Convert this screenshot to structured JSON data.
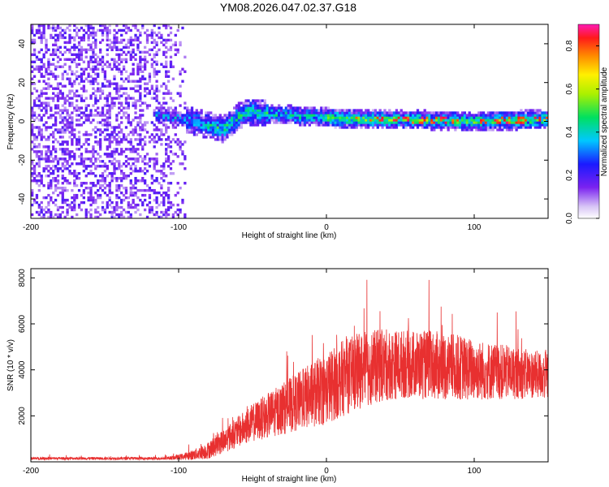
{
  "title": "YM08.2026.047.02.37.G18",
  "chart_data": [
    {
      "type": "heatmap",
      "name": "spectrogram",
      "xlabel": "Height of straight line (km)",
      "ylabel": "Frequency (Hz)",
      "xlim": [
        -200,
        150
      ],
      "ylim": [
        -50,
        50
      ],
      "xticks": [
        -200,
        -100,
        0,
        100
      ],
      "yticks": [
        -40,
        -20,
        0,
        20,
        40
      ],
      "description_of_data": "Normalized spectral amplitude; broad noise below about -95 km, narrow band near 0 Hz above",
      "noise_region_x": [
        -200,
        -95
      ],
      "signal_band_center_hz": [
        {
          "x": -110,
          "f": 3
        },
        {
          "x": -90,
          "f": 0
        },
        {
          "x": -70,
          "f": -4
        },
        {
          "x": -55,
          "f": 5
        },
        {
          "x": -40,
          "f": 4
        },
        {
          "x": -20,
          "f": 3
        },
        {
          "x": 0,
          "f": 2
        },
        {
          "x": 25,
          "f": 1
        },
        {
          "x": 50,
          "f": 1
        },
        {
          "x": 75,
          "f": 0.5
        },
        {
          "x": 100,
          "f": 0
        },
        {
          "x": 125,
          "f": 0.5
        },
        {
          "x": 150,
          "f": 1
        }
      ],
      "colorbar": {
        "label": "Normalized spectral amplitude",
        "range": [
          0.0,
          0.9
        ],
        "ticks": [
          "0.0",
          "0.2",
          "0.4",
          "0.6",
          "0.8"
        ]
      }
    },
    {
      "type": "line",
      "name": "snr",
      "xlabel": "Height of straight line (km)",
      "ylabel": "SNR (10 * v/v)",
      "xlim": [
        -200,
        150
      ],
      "ylim": [
        0,
        8400
      ],
      "xticks": [
        -200,
        -100,
        0,
        100
      ],
      "yticks": [
        2000,
        4000,
        6000,
        8000
      ],
      "series_color": "#e83030",
      "envelope": {
        "x": [
          -200,
          -110,
          -100,
          -90,
          -80,
          -70,
          -60,
          -50,
          -40,
          -30,
          -20,
          -10,
          0,
          10,
          20,
          30,
          40,
          50,
          60,
          70,
          80,
          90,
          100,
          110,
          120,
          130,
          140,
          150
        ],
        "mid": [
          150,
          150,
          200,
          300,
          500,
          900,
          1300,
          1700,
          2000,
          2300,
          2600,
          2900,
          3200,
          3600,
          3900,
          4100,
          4200,
          4250,
          4250,
          4200,
          4150,
          4100,
          4000,
          3950,
          3900,
          3850,
          3800,
          3750
        ],
        "amp": [
          80,
          80,
          150,
          300,
          500,
          700,
          900,
          1100,
          1300,
          1500,
          1700,
          1900,
          2100,
          2200,
          2200,
          2200,
          2100,
          2000,
          2000,
          2000,
          2000,
          1900,
          1800,
          1700,
          1600,
          1500,
          1400,
          1400
        ]
      }
    }
  ]
}
